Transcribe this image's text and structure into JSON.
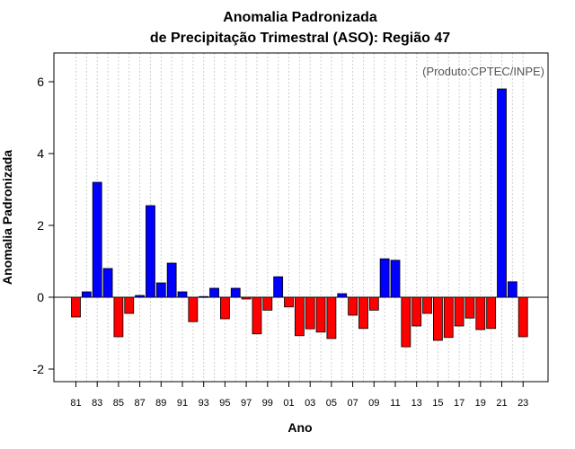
{
  "chart_data": {
    "type": "bar",
    "title": "Anomalia Padronizada",
    "subtitle": "de Precipitação Trimestral (ASO): Região 47",
    "xlabel": "Ano",
    "ylabel": "Anomalia Padronizada",
    "credit": "(Produto:CPTEC/INPE)",
    "ylim": [
      -2.35,
      6.8
    ],
    "yticks": [
      -2,
      0,
      2,
      4,
      6
    ],
    "ytick_labels": [
      "-2",
      "0",
      "2",
      "4",
      "6"
    ],
    "grid": "vertical dotted",
    "positive_color": "#0000ff",
    "negative_color": "#ff0000",
    "categories": [
      "81",
      "82",
      "83",
      "84",
      "85",
      "86",
      "87",
      "88",
      "89",
      "90",
      "91",
      "92",
      "93",
      "94",
      "95",
      "96",
      "97",
      "98",
      "99",
      "00",
      "01",
      "02",
      "03",
      "04",
      "05",
      "06",
      "07",
      "08",
      "09",
      "10",
      "11",
      "12",
      "13",
      "14",
      "15",
      "16",
      "17",
      "18",
      "19",
      "20",
      "21",
      "22",
      "23"
    ],
    "xtick_labels": [
      "81",
      "",
      "83",
      "",
      "85",
      "",
      "87",
      "",
      "89",
      "",
      "91",
      "",
      "93",
      "",
      "95",
      "",
      "97",
      "",
      "99",
      "",
      "01",
      "",
      "03",
      "",
      "05",
      "",
      "07",
      "",
      "09",
      "",
      "11",
      "",
      "13",
      "",
      "15",
      "",
      "17",
      "",
      "19",
      "",
      "21",
      "",
      "23"
    ],
    "values": [
      -0.55,
      0.15,
      3.2,
      0.8,
      -1.1,
      -0.45,
      0.05,
      2.55,
      0.4,
      0.95,
      0.15,
      -0.68,
      0.02,
      0.25,
      -0.6,
      0.25,
      -0.05,
      -1.02,
      -0.36,
      0.57,
      -0.27,
      -1.07,
      -0.88,
      -0.97,
      -1.15,
      0.1,
      -0.5,
      -0.87,
      -0.36,
      1.07,
      1.03,
      -1.38,
      -0.8,
      -0.45,
      -1.2,
      -1.12,
      -0.8,
      -0.58,
      -0.9,
      -0.87,
      5.8,
      0.43,
      -1.1
    ]
  }
}
